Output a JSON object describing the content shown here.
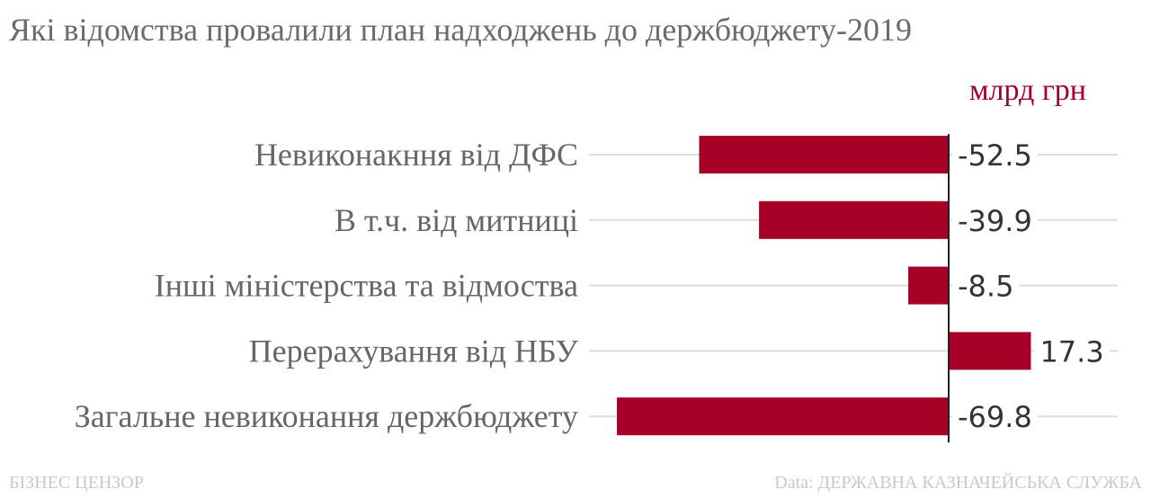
{
  "title": "Які відомства провалили план надходжень до держбюджету-2019",
  "unit_label": "млрд грн",
  "footer": {
    "brand": "БІЗНЕС ЦЕНЗОР",
    "source": "Data: ДЕРЖАВНА КАЗНАЧЕЙСЬКА СЛУЖБА"
  },
  "colors": {
    "bar": "#a60026",
    "unit": "#a60026",
    "category_text": "#666666",
    "value_text": "#333333",
    "guide": "#dddddd",
    "zero_axis": "#222222"
  },
  "chart_data": {
    "type": "bar",
    "orientation": "horizontal",
    "categories": [
      "Невиконакння від ДФС",
      "В т.ч. від митниці ",
      "Інші міністерства та відмоства ",
      "Перерахування від НБУ",
      "Загальне невиконання держбюджету "
    ],
    "values": [
      -52.5,
      -39.9,
      -8.5,
      17.3,
      -69.8
    ],
    "value_labels": [
      "-52.5",
      "-39.9",
      "-8.5",
      "17.3",
      "-69.8"
    ],
    "xlim": [
      -70,
      17.3
    ],
    "grid": false,
    "legend": "none"
  }
}
